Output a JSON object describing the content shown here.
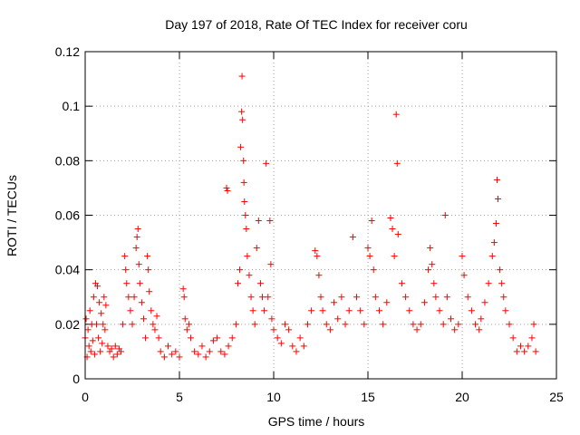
{
  "chart_data": {
    "type": "scatter",
    "title": "Day 197 of 2018, Rate Of TEC Index for receiver coru",
    "xlabel": "GPS time / hours",
    "ylabel": "ROTI / TECUs",
    "xlim": [
      0,
      25
    ],
    "ylim": [
      0,
      0.12
    ],
    "x_ticks": [
      "0",
      "5",
      "10",
      "15",
      "20",
      "25"
    ],
    "y_ticks": [
      "0",
      "0.02",
      "0.04",
      "0.06",
      "0.08",
      "0.1",
      "0.12"
    ],
    "grid": true,
    "marker": "+",
    "color": "#ff0000",
    "series": [
      {
        "points": [
          [
            0.0,
            0.015
          ],
          [
            0.05,
            0.022
          ],
          [
            0.1,
            0.008
          ],
          [
            0.15,
            0.018
          ],
          [
            0.2,
            0.012
          ],
          [
            0.25,
            0.025
          ],
          [
            0.3,
            0.01
          ],
          [
            0.35,
            0.02
          ],
          [
            0.4,
            0.014
          ],
          [
            0.45,
            0.03
          ],
          [
            0.5,
            0.009
          ],
          [
            0.55,
            0.035
          ],
          [
            0.6,
            0.02
          ],
          [
            0.65,
            0.034
          ],
          [
            0.7,
            0.015
          ],
          [
            0.75,
            0.028
          ],
          [
            0.8,
            0.01
          ],
          [
            0.85,
            0.024
          ],
          [
            0.9,
            0.013
          ],
          [
            0.95,
            0.02
          ],
          [
            1.0,
            0.03
          ],
          [
            1.05,
            0.018
          ],
          [
            1.1,
            0.027
          ],
          [
            1.2,
            0.012
          ],
          [
            1.3,
            0.01
          ],
          [
            1.4,
            0.011
          ],
          [
            1.5,
            0.008
          ],
          [
            1.6,
            0.012
          ],
          [
            1.7,
            0.009
          ],
          [
            1.8,
            0.011
          ],
          [
            1.9,
            0.01
          ],
          [
            2.0,
            0.02
          ],
          [
            2.1,
            0.045
          ],
          [
            2.15,
            0.04
          ],
          [
            2.2,
            0.035
          ],
          [
            2.3,
            0.03
          ],
          [
            2.4,
            0.025
          ],
          [
            2.5,
            0.02
          ],
          [
            2.6,
            0.03
          ],
          [
            2.7,
            0.048
          ],
          [
            2.75,
            0.052
          ],
          [
            2.8,
            0.055
          ],
          [
            2.85,
            0.042
          ],
          [
            2.9,
            0.035
          ],
          [
            3.0,
            0.028
          ],
          [
            3.1,
            0.022
          ],
          [
            3.2,
            0.015
          ],
          [
            3.3,
            0.045
          ],
          [
            3.35,
            0.04
          ],
          [
            3.4,
            0.032
          ],
          [
            3.5,
            0.025
          ],
          [
            3.6,
            0.02
          ],
          [
            3.7,
            0.018
          ],
          [
            3.8,
            0.023
          ],
          [
            3.9,
            0.015
          ],
          [
            4.0,
            0.01
          ],
          [
            4.2,
            0.008
          ],
          [
            4.4,
            0.012
          ],
          [
            4.6,
            0.009
          ],
          [
            4.8,
            0.01
          ],
          [
            5.0,
            0.008
          ],
          [
            5.2,
            0.033
          ],
          [
            5.25,
            0.03
          ],
          [
            5.3,
            0.022
          ],
          [
            5.4,
            0.018
          ],
          [
            5.5,
            0.02
          ],
          [
            5.6,
            0.015
          ],
          [
            5.8,
            0.01
          ],
          [
            6.0,
            0.009
          ],
          [
            6.2,
            0.012
          ],
          [
            6.4,
            0.008
          ],
          [
            6.6,
            0.01
          ],
          [
            6.8,
            0.014
          ],
          [
            7.0,
            0.015
          ],
          [
            7.2,
            0.01
          ],
          [
            7.4,
            0.009
          ],
          [
            7.5,
            0.07
          ],
          [
            7.55,
            0.069
          ],
          [
            7.6,
            0.012
          ],
          [
            7.8,
            0.015
          ],
          [
            8.0,
            0.02
          ],
          [
            8.1,
            0.035
          ],
          [
            8.2,
            0.04
          ],
          [
            8.25,
            0.085
          ],
          [
            8.3,
            0.098
          ],
          [
            8.32,
            0.111
          ],
          [
            8.35,
            0.095
          ],
          [
            8.4,
            0.08
          ],
          [
            8.42,
            0.072
          ],
          [
            8.45,
            0.065
          ],
          [
            8.5,
            0.06
          ],
          [
            8.55,
            0.055
          ],
          [
            8.6,
            0.045
          ],
          [
            8.7,
            0.038
          ],
          [
            8.8,
            0.03
          ],
          [
            8.9,
            0.025
          ],
          [
            9.0,
            0.02
          ],
          [
            9.1,
            0.048
          ],
          [
            9.2,
            0.058
          ],
          [
            9.3,
            0.035
          ],
          [
            9.4,
            0.03
          ],
          [
            9.5,
            0.025
          ],
          [
            9.6,
            0.079
          ],
          [
            9.7,
            0.03
          ],
          [
            9.8,
            0.058
          ],
          [
            9.85,
            0.042
          ],
          [
            9.9,
            0.022
          ],
          [
            10.0,
            0.018
          ],
          [
            10.2,
            0.015
          ],
          [
            10.4,
            0.013
          ],
          [
            10.6,
            0.02
          ],
          [
            10.8,
            0.018
          ],
          [
            11.0,
            0.012
          ],
          [
            11.2,
            0.01
          ],
          [
            11.4,
            0.015
          ],
          [
            11.6,
            0.012
          ],
          [
            11.8,
            0.02
          ],
          [
            12.0,
            0.025
          ],
          [
            12.2,
            0.047
          ],
          [
            12.3,
            0.045
          ],
          [
            12.4,
            0.038
          ],
          [
            12.5,
            0.03
          ],
          [
            12.6,
            0.025
          ],
          [
            12.8,
            0.02
          ],
          [
            13.0,
            0.018
          ],
          [
            13.2,
            0.028
          ],
          [
            13.4,
            0.022
          ],
          [
            13.6,
            0.03
          ],
          [
            13.8,
            0.02
          ],
          [
            14.0,
            0.025
          ],
          [
            14.2,
            0.052
          ],
          [
            14.4,
            0.03
          ],
          [
            14.6,
            0.025
          ],
          [
            14.8,
            0.02
          ],
          [
            15.0,
            0.048
          ],
          [
            15.1,
            0.045
          ],
          [
            15.2,
            0.058
          ],
          [
            15.3,
            0.04
          ],
          [
            15.4,
            0.03
          ],
          [
            15.6,
            0.025
          ],
          [
            15.8,
            0.02
          ],
          [
            16.0,
            0.028
          ],
          [
            16.2,
            0.059
          ],
          [
            16.3,
            0.055
          ],
          [
            16.4,
            0.045
          ],
          [
            16.5,
            0.097
          ],
          [
            16.55,
            0.079
          ],
          [
            16.6,
            0.053
          ],
          [
            16.8,
            0.035
          ],
          [
            17.0,
            0.03
          ],
          [
            17.2,
            0.025
          ],
          [
            17.4,
            0.02
          ],
          [
            17.6,
            0.018
          ],
          [
            17.8,
            0.02
          ],
          [
            18.0,
            0.028
          ],
          [
            18.2,
            0.04
          ],
          [
            18.3,
            0.048
          ],
          [
            18.4,
            0.042
          ],
          [
            18.5,
            0.035
          ],
          [
            18.6,
            0.03
          ],
          [
            18.8,
            0.025
          ],
          [
            19.0,
            0.02
          ],
          [
            19.1,
            0.06
          ],
          [
            19.2,
            0.03
          ],
          [
            19.4,
            0.022
          ],
          [
            19.6,
            0.018
          ],
          [
            19.8,
            0.02
          ],
          [
            20.0,
            0.045
          ],
          [
            20.1,
            0.038
          ],
          [
            20.3,
            0.03
          ],
          [
            20.5,
            0.025
          ],
          [
            20.7,
            0.02
          ],
          [
            20.9,
            0.018
          ],
          [
            21.0,
            0.022
          ],
          [
            21.2,
            0.028
          ],
          [
            21.4,
            0.035
          ],
          [
            21.6,
            0.045
          ],
          [
            21.7,
            0.05
          ],
          [
            21.8,
            0.057
          ],
          [
            21.85,
            0.073
          ],
          [
            21.9,
            0.066
          ],
          [
            22.0,
            0.04
          ],
          [
            22.1,
            0.035
          ],
          [
            22.2,
            0.03
          ],
          [
            22.3,
            0.025
          ],
          [
            22.5,
            0.02
          ],
          [
            22.7,
            0.015
          ],
          [
            22.9,
            0.01
          ],
          [
            23.1,
            0.012
          ],
          [
            23.3,
            0.01
          ],
          [
            23.5,
            0.012
          ],
          [
            23.7,
            0.015
          ],
          [
            23.8,
            0.02
          ],
          [
            23.9,
            0.01
          ]
        ]
      }
    ]
  }
}
